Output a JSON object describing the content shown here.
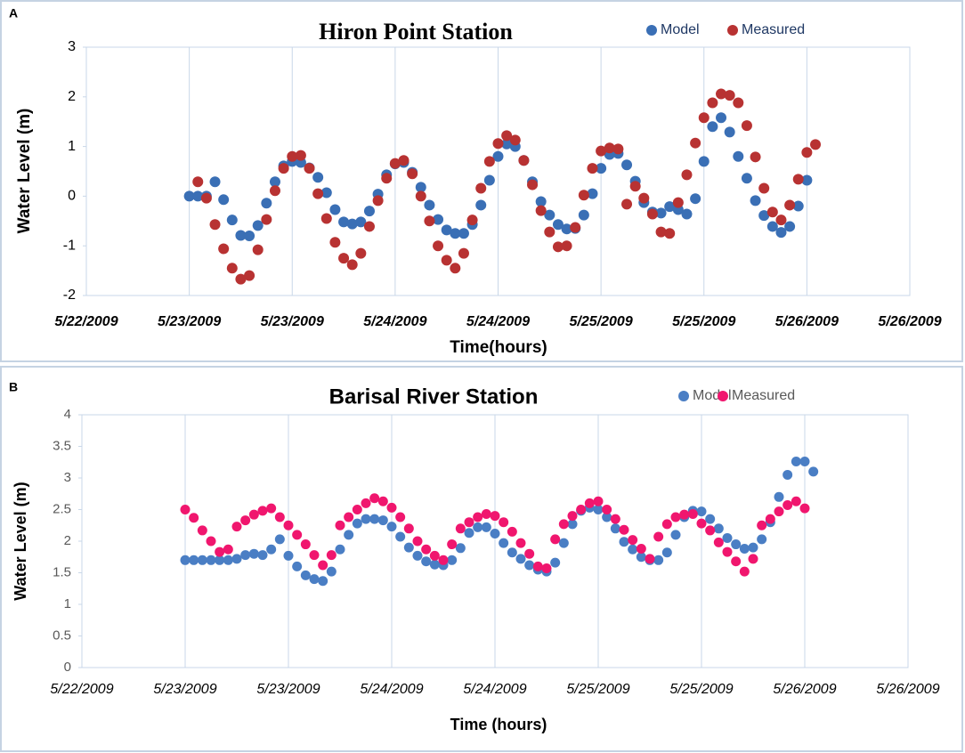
{
  "chart_data": [
    {
      "type": "scatter",
      "panel_label": "A",
      "title": "Hiron Point Station",
      "xlabel": "Time(hours)",
      "ylabel": "Water Level (m)",
      "xlim": [
        0,
        96
      ],
      "ylim": [
        -2,
        3
      ],
      "grid": "x",
      "xticks": [
        {
          "value": 0,
          "label": "5/22/2009"
        },
        {
          "value": 12,
          "label": "5/23/2009"
        },
        {
          "value": 24,
          "label": "5/23/2009"
        },
        {
          "value": 36,
          "label": "5/24/2009"
        },
        {
          "value": 48,
          "label": "5/24/2009"
        },
        {
          "value": 60,
          "label": "5/25/2009"
        },
        {
          "value": 72,
          "label": "5/25/2009"
        },
        {
          "value": 84,
          "label": "5/26/2009"
        },
        {
          "value": 96,
          "label": "5/26/2009"
        }
      ],
      "yticks": [
        -2,
        -1,
        0,
        1,
        2,
        3
      ],
      "series": [
        {
          "name": "Model",
          "color": "#3a6fb5",
          "x": [
            12,
            13,
            14,
            15,
            16,
            17,
            18,
            19,
            20,
            21,
            22,
            23,
            24,
            25,
            26,
            27,
            28,
            29,
            30,
            31,
            32,
            33,
            34,
            35,
            36,
            37,
            38,
            39,
            40,
            41,
            42,
            43,
            44,
            45,
            46,
            47,
            48,
            49,
            50,
            51,
            52,
            53,
            54,
            55,
            56,
            57,
            58,
            59,
            60,
            61,
            62,
            63,
            64,
            65,
            66,
            67,
            68,
            69,
            70,
            71,
            72,
            73,
            74,
            75,
            76,
            77,
            78,
            79,
            80,
            81,
            82,
            83,
            84
          ],
          "values": [
            0,
            0,
            0,
            0.29,
            -0.07,
            -0.48,
            -0.79,
            -0.8,
            -0.59,
            -0.14,
            0.29,
            0.61,
            0.7,
            0.68,
            0.57,
            0.38,
            0.07,
            -0.27,
            -0.52,
            -0.56,
            -0.52,
            -0.3,
            0.04,
            0.43,
            0.65,
            0.68,
            0.48,
            0.18,
            -0.18,
            -0.47,
            -0.68,
            -0.75,
            -0.75,
            -0.57,
            -0.18,
            0.32,
            0.8,
            1.05,
            1.0,
            0.72,
            0.29,
            -0.11,
            -0.38,
            -0.57,
            -0.66,
            -0.65,
            -0.38,
            0.05,
            0.56,
            0.84,
            0.86,
            0.63,
            0.3,
            -0.13,
            -0.32,
            -0.34,
            -0.21,
            -0.27,
            -0.36,
            -0.05,
            0.7,
            1.4,
            1.58,
            1.29,
            0.8,
            0.36,
            -0.09,
            -0.39,
            -0.61,
            -0.73,
            -0.61,
            -0.2,
            0.32
          ]
        },
        {
          "name": "Measured",
          "color": "#b83232",
          "x": [
            13,
            14,
            15,
            16,
            17,
            18,
            19,
            20,
            21,
            22,
            23,
            24,
            25,
            26,
            27,
            28,
            29,
            30,
            31,
            32,
            33,
            34,
            35,
            36,
            37,
            38,
            39,
            40,
            41,
            42,
            43,
            44,
            45,
            46,
            47,
            48,
            49,
            50,
            51,
            52,
            53,
            54,
            55,
            56,
            57,
            58,
            59,
            60,
            61,
            62,
            63,
            64,
            65,
            66,
            67,
            68,
            69,
            70,
            71,
            72,
            73,
            74,
            75,
            76,
            77,
            78,
            79,
            80,
            81,
            82,
            83,
            84,
            85
          ],
          "values": [
            0.29,
            -0.04,
            -0.57,
            -1.06,
            -1.45,
            -1.67,
            -1.6,
            -1.08,
            -0.47,
            0.11,
            0.56,
            0.8,
            0.82,
            0.56,
            0.05,
            -0.45,
            -0.93,
            -1.25,
            -1.38,
            -1.15,
            -0.61,
            -0.09,
            0.36,
            0.66,
            0.72,
            0.45,
            0,
            -0.5,
            -1.0,
            -1.29,
            -1.45,
            -1.15,
            -0.48,
            0.16,
            0.7,
            1.06,
            1.22,
            1.13,
            0.72,
            0.23,
            -0.29,
            -0.72,
            -1.02,
            -1.0,
            -0.63,
            0.02,
            0.56,
            0.91,
            0.97,
            0.95,
            -0.16,
            0.2,
            -0.04,
            -0.36,
            -0.72,
            -0.75,
            -0.13,
            0.43,
            1.07,
            1.58,
            1.88,
            2.06,
            2.03,
            1.88,
            1.42,
            0.79,
            0.16,
            -0.32,
            -0.48,
            -0.18,
            0.34,
            0.88,
            1.04
          ]
        }
      ]
    },
    {
      "type": "scatter",
      "panel_label": "B",
      "title": "Barisal River Station",
      "xlabel": "Time (hours)",
      "ylabel": "Water Level (m)",
      "xlim": [
        0,
        96
      ],
      "ylim": [
        0,
        4
      ],
      "grid": "x",
      "xticks": [
        {
          "value": 0,
          "label": "5/22/2009"
        },
        {
          "value": 12,
          "label": "5/23/2009"
        },
        {
          "value": 24,
          "label": "5/23/2009"
        },
        {
          "value": 36,
          "label": "5/24/2009"
        },
        {
          "value": 48,
          "label": "5/24/2009"
        },
        {
          "value": 60,
          "label": "5/25/2009"
        },
        {
          "value": 72,
          "label": "5/25/2009"
        },
        {
          "value": 84,
          "label": "5/26/2009"
        },
        {
          "value": 96,
          "label": "5/26/2009"
        }
      ],
      "yticks": [
        0,
        0.5,
        1,
        1.5,
        2,
        2.5,
        3,
        3.5,
        4
      ],
      "series": [
        {
          "name": "Model",
          "color": "#4a7ec4",
          "x": [
            12,
            13,
            14,
            15,
            16,
            17,
            18,
            19,
            20,
            21,
            22,
            23,
            24,
            25,
            26,
            27,
            28,
            29,
            30,
            31,
            32,
            33,
            34,
            35,
            36,
            37,
            38,
            39,
            40,
            41,
            42,
            43,
            44,
            45,
            46,
            47,
            48,
            49,
            50,
            51,
            52,
            53,
            54,
            55,
            56,
            57,
            58,
            59,
            60,
            61,
            62,
            63,
            64,
            65,
            66,
            67,
            68,
            69,
            70,
            71,
            72,
            73,
            74,
            75,
            76,
            77,
            78,
            79,
            80,
            81,
            82,
            83,
            84,
            85
          ],
          "values": [
            1.7,
            1.7,
            1.7,
            1.7,
            1.7,
            1.7,
            1.72,
            1.78,
            1.8,
            1.78,
            1.87,
            2.03,
            1.77,
            1.6,
            1.46,
            1.4,
            1.37,
            1.52,
            1.87,
            2.1,
            2.28,
            2.35,
            2.35,
            2.33,
            2.23,
            2.07,
            1.9,
            1.77,
            1.68,
            1.63,
            1.62,
            1.7,
            1.89,
            2.13,
            2.22,
            2.22,
            2.12,
            1.97,
            1.82,
            1.72,
            1.62,
            1.55,
            1.52,
            1.66,
            1.97,
            2.27,
            2.48,
            2.53,
            2.5,
            2.38,
            2.2,
            1.99,
            1.87,
            1.75,
            1.7,
            1.7,
            1.82,
            2.1,
            2.38,
            2.48,
            2.47,
            2.35,
            2.2,
            2.05,
            1.95,
            1.88,
            1.9,
            2.03,
            2.3,
            2.7,
            3.05,
            3.26,
            3.26,
            3.1
          ]
        },
        {
          "name": "Measured",
          "color": "#f0166e",
          "x": [
            12,
            13,
            14,
            15,
            16,
            17,
            18,
            19,
            20,
            21,
            22,
            23,
            24,
            25,
            26,
            27,
            28,
            29,
            30,
            31,
            32,
            33,
            34,
            35,
            36,
            37,
            38,
            39,
            40,
            41,
            42,
            43,
            44,
            45,
            46,
            47,
            48,
            49,
            50,
            51,
            52,
            53,
            54,
            55,
            56,
            57,
            58,
            59,
            60,
            61,
            62,
            63,
            64,
            65,
            66,
            67,
            68,
            69,
            70,
            71,
            72,
            73,
            74,
            75,
            76,
            77,
            78,
            79,
            80,
            81,
            82,
            83,
            84
          ],
          "values": [
            2.5,
            2.37,
            2.17,
            2.0,
            1.83,
            1.87,
            2.23,
            2.33,
            2.42,
            2.48,
            2.52,
            2.38,
            2.25,
            2.1,
            1.95,
            1.78,
            1.62,
            1.78,
            2.25,
            2.38,
            2.5,
            2.6,
            2.68,
            2.63,
            2.53,
            2.38,
            2.2,
            2.0,
            1.87,
            1.77,
            1.7,
            1.95,
            2.2,
            2.3,
            2.38,
            2.43,
            2.4,
            2.3,
            2.15,
            1.97,
            1.8,
            1.6,
            1.57,
            2.03,
            2.27,
            2.4,
            2.5,
            2.6,
            2.63,
            2.5,
            2.35,
            2.18,
            2.02,
            1.88,
            1.72,
            2.07,
            2.27,
            2.38,
            2.42,
            2.43,
            2.28,
            2.17,
            1.98,
            1.83,
            1.68,
            1.52,
            1.72,
            2.25,
            2.35,
            2.47,
            2.57,
            2.63,
            2.52
          ]
        }
      ]
    }
  ]
}
